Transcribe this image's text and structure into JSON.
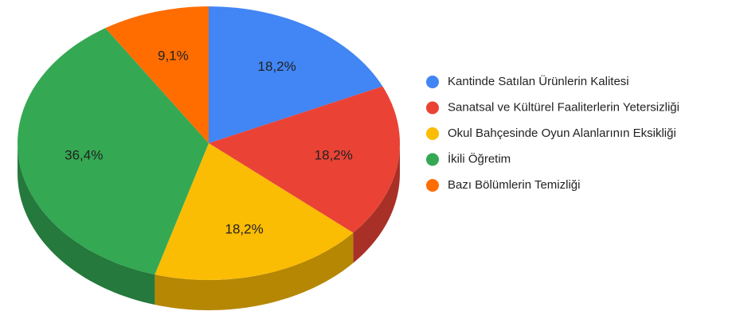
{
  "chart_data": {
    "type": "pie",
    "categories": [
      "Kantinde Satılan Ürünlerin Kalitesi",
      "Sanatsal ve Kültürel Faaliterlerin Yetersizliği",
      "Okul Bahçesinde Oyun Alanlarının Eksikliği",
      "İkili Öğretim",
      "Bazı Bölümlerin Temizliği"
    ],
    "values": [
      18.2,
      18.2,
      18.2,
      36.4,
      9.1
    ],
    "value_labels": [
      "18,2%",
      "18,2%",
      "18,2%",
      "36,4%",
      "9,1%"
    ],
    "colors": [
      "#4285f4",
      "#ea4335",
      "#fbbc04",
      "#34a853",
      "#ff6d01"
    ],
    "legend": "right"
  }
}
